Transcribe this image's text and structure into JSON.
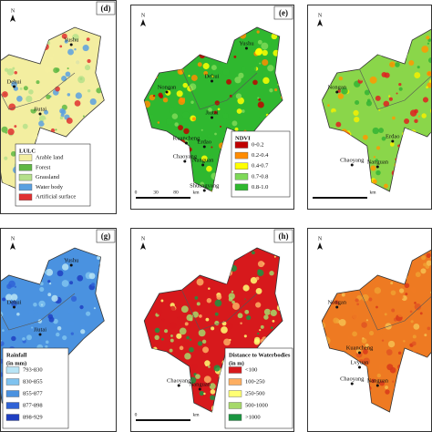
{
  "panels": [
    {
      "label": "(d)",
      "places": [
        "Yushu",
        "Dehui",
        "Jiutai"
      ],
      "legend": {
        "title": "LULC",
        "items": [
          {
            "label": "Arable land",
            "color": "#f3eea0"
          },
          {
            "label": "Forest",
            "color": "#5fb844"
          },
          {
            "label": "Grassland",
            "color": "#b5e08a"
          },
          {
            "label": "Water body",
            "color": "#5aa0e0"
          },
          {
            "label": "Artificial surface",
            "color": "#e03030"
          }
        ]
      }
    },
    {
      "label": "(e)",
      "places": [
        "Yushu",
        "Dehui",
        "Nongan",
        "Jiutai",
        "Kuancheng",
        "Erdao",
        "Chaoyang",
        "Nanguan",
        "Shuangyang"
      ],
      "scale": [
        "0",
        "30",
        "80",
        "km"
      ],
      "legend": {
        "title": "NDVI",
        "items": [
          {
            "label": "0-0.2",
            "color": "#c00000"
          },
          {
            "label": "0.2-0.4",
            "color": "#ff8c00"
          },
          {
            "label": "0.4-0.7",
            "color": "#ffff00"
          },
          {
            "label": "0.7-0.8",
            "color": "#7ed957"
          },
          {
            "label": "0.8-1.0",
            "color": "#2fb82f"
          }
        ]
      }
    },
    {
      "places": [
        "Nongan",
        "Erdao",
        "Chaoyang",
        "Nanguan"
      ],
      "scale": [
        "km"
      ],
      "colors": [
        "#e02020",
        "#ff9900",
        "#f5f000",
        "#8ad64a",
        "#34b434"
      ]
    },
    {
      "label": "(g)",
      "places": [
        "Yushu",
        "Dehui",
        "Jiutai"
      ],
      "legend": {
        "title": "Rainfall",
        "subtitle": "(in mm)",
        "items": [
          {
            "label": "793-830",
            "color": "#b8e4f5"
          },
          {
            "label": "830-855",
            "color": "#7fc3ef"
          },
          {
            "label": "855-877",
            "color": "#4a92e0"
          },
          {
            "label": "877-898",
            "color": "#2f62d6"
          },
          {
            "label": "898-929",
            "color": "#1f3fc2"
          }
        ]
      }
    },
    {
      "label": "(h)",
      "places": [
        "Chaoyang",
        "Nanguan"
      ],
      "scale": [
        "0",
        "km"
      ],
      "legend": {
        "title": "Distance to Waterbodies",
        "subtitle": "(in m)",
        "items": [
          {
            "label": "<100",
            "color": "#d7191c"
          },
          {
            "label": "100-250",
            "color": "#fdae61"
          },
          {
            "label": "250-500",
            "color": "#ffff73"
          },
          {
            "label": "500-1000",
            "color": "#a6d96a"
          },
          {
            "label": ">1000",
            "color": "#1a9641"
          }
        ]
      }
    },
    {
      "places": [
        "Nongan",
        "Kuancheng",
        "Lvyuan",
        "Chaoyang",
        "Nanguan"
      ],
      "colors": [
        "#d83a1a",
        "#ee7a22",
        "#f0a030",
        "#e05522",
        "#f6c050"
      ]
    }
  ]
}
